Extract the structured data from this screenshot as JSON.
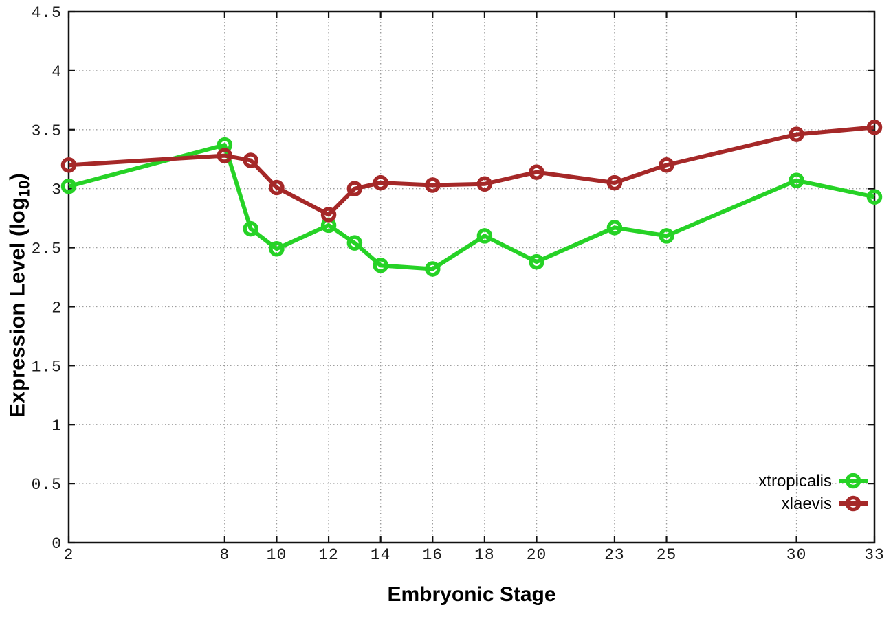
{
  "axes": {
    "xlabel": "Embryonic Stage",
    "ylabel": {
      "pre": "Expression Level (log",
      "sub": "10",
      "post": ")"
    }
  },
  "chart_data": {
    "type": "line",
    "title": "",
    "xlabel": "Embryonic Stage",
    "ylabel": "Expression Level (log10)",
    "xlim": [
      2,
      33
    ],
    "ylim": [
      0,
      4.5
    ],
    "grid": true,
    "grid_style": "dotted",
    "legend_position": "bottom-right-inside",
    "x": [
      2,
      8,
      9,
      10,
      12,
      13,
      14,
      16,
      18,
      20,
      23,
      25,
      30,
      33
    ],
    "x_tick_labels": [
      "2",
      "8",
      "10",
      "12",
      "14",
      "16",
      "18",
      "20",
      "23",
      "25",
      "30",
      "33"
    ],
    "x_tick_values": [
      2,
      8,
      10,
      12,
      14,
      16,
      18,
      20,
      23,
      25,
      30,
      33
    ],
    "y_tick_labels": [
      "0",
      "0.5",
      "1",
      "1.5",
      "2",
      "2.5",
      "3",
      "3.5",
      "4",
      "4.5"
    ],
    "y_tick_values": [
      0,
      0.5,
      1,
      1.5,
      2,
      2.5,
      3,
      3.5,
      4,
      4.5
    ],
    "series": [
      {
        "name": "xtropicalis",
        "color": "#26d226",
        "marker": "open-circle",
        "values": [
          3.02,
          3.37,
          2.66,
          2.49,
          2.69,
          2.54,
          2.35,
          2.32,
          2.6,
          2.38,
          2.67,
          2.6,
          3.07,
          2.93
        ]
      },
      {
        "name": "xlaevis",
        "color": "#a52828",
        "marker": "open-circle",
        "values": [
          3.2,
          3.28,
          3.24,
          3.01,
          2.78,
          3.0,
          3.05,
          3.03,
          3.04,
          3.14,
          3.05,
          3.2,
          3.46,
          3.52
        ]
      }
    ],
    "axis_color": "#111111",
    "grid_color": "#9e9e9e",
    "tick_label_color": "#1a1a1a"
  }
}
